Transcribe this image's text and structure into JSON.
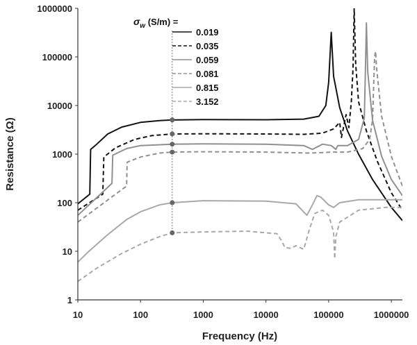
{
  "chart_data": {
    "type": "line",
    "xlabel": "Frequency (Hz)",
    "ylabel": "Resistance (Ω)",
    "x_scale": "log",
    "y_scale": "log",
    "xlim": [
      10,
      1500000
    ],
    "ylim": [
      1,
      1000000
    ],
    "x_ticks": [
      "10",
      "100",
      "1000",
      "10000",
      "100000",
      "1000000"
    ],
    "y_ticks": [
      "1",
      "10",
      "100",
      "1000",
      "10000",
      "100000",
      "1000000"
    ],
    "grid": false,
    "legend": {
      "title_symbol": "σ",
      "title_subscript": "w",
      "title_rest": " (S/m) =",
      "placement": "top-center",
      "entries": [
        "0.019",
        "0.035",
        "0.059",
        "0.081",
        "0.815",
        "3.152"
      ]
    },
    "marker_frequency": 320,
    "series": [
      {
        "name": "0.019",
        "color": "#111111",
        "dash": "solid",
        "points": [
          [
            10,
            95
          ],
          [
            15.5,
            150
          ],
          [
            16,
            1250
          ],
          [
            20,
            1600
          ],
          [
            30,
            2600
          ],
          [
            50,
            3600
          ],
          [
            100,
            4500
          ],
          [
            200,
            4900
          ],
          [
            320,
            5050
          ],
          [
            1000,
            5150
          ],
          [
            10000,
            5100
          ],
          [
            40000,
            5250
          ],
          [
            70000,
            6000
          ],
          [
            90000,
            10000
          ],
          [
            100000,
            30000
          ],
          [
            110000,
            320000
          ],
          [
            120000,
            40000
          ],
          [
            150000,
            9000
          ],
          [
            200000,
            3000
          ],
          [
            300000,
            1000
          ],
          [
            500000,
            300
          ],
          [
            1000000,
            80
          ],
          [
            1500000,
            43
          ]
        ]
      },
      {
        "name": "0.035",
        "color": "#111111",
        "dash": "dashed",
        "points": [
          [
            10,
            70
          ],
          [
            25,
            150
          ],
          [
            26,
            870
          ],
          [
            40,
            1350
          ],
          [
            80,
            2000
          ],
          [
            150,
            2400
          ],
          [
            320,
            2600
          ],
          [
            1000,
            2620
          ],
          [
            10000,
            2600
          ],
          [
            40000,
            2550
          ],
          [
            80000,
            2700
          ],
          [
            120000,
            3300
          ],
          [
            150000,
            4500
          ],
          [
            160000,
            2200
          ],
          [
            190000,
            6500
          ],
          [
            210000,
            3500
          ],
          [
            230000,
            12000
          ],
          [
            245000,
            60000
          ],
          [
            255000,
            1000000
          ],
          [
            270000,
            70000
          ],
          [
            300000,
            12000
          ],
          [
            400000,
            3000
          ],
          [
            600000,
            700
          ],
          [
            1000000,
            160
          ],
          [
            1500000,
            70
          ]
        ]
      },
      {
        "name": "0.059",
        "color": "#909090",
        "dash": "solid",
        "points": [
          [
            10,
            55
          ],
          [
            35,
            250
          ],
          [
            36,
            950
          ],
          [
            60,
            1300
          ],
          [
            100,
            1500
          ],
          [
            320,
            1600
          ],
          [
            1000,
            1620
          ],
          [
            10000,
            1600
          ],
          [
            40000,
            1500
          ],
          [
            55000,
            1250
          ],
          [
            80000,
            1600
          ],
          [
            110000,
            1500
          ],
          [
            130000,
            1250
          ],
          [
            140000,
            1500
          ],
          [
            200000,
            1500
          ],
          [
            300000,
            2000
          ],
          [
            370000,
            5500
          ],
          [
            390000,
            100000
          ],
          [
            400000,
            500000
          ],
          [
            420000,
            50000
          ],
          [
            500000,
            5000
          ],
          [
            700000,
            900
          ],
          [
            1000000,
            300
          ],
          [
            1500000,
            140
          ]
        ]
      },
      {
        "name": "0.081",
        "color": "#909090",
        "dash": "dashed",
        "points": [
          [
            10,
            40
          ],
          [
            60,
            220
          ],
          [
            61,
            680
          ],
          [
            100,
            870
          ],
          [
            200,
            1050
          ],
          [
            320,
            1100
          ],
          [
            1000,
            1120
          ],
          [
            10000,
            1100
          ],
          [
            50000,
            1050
          ],
          [
            120000,
            1100
          ],
          [
            200000,
            1100
          ],
          [
            350000,
            1300
          ],
          [
            450000,
            2000
          ],
          [
            500000,
            5000
          ],
          [
            540000,
            100000
          ],
          [
            560000,
            130000
          ],
          [
            580000,
            60000
          ],
          [
            700000,
            6000
          ],
          [
            1000000,
            900
          ],
          [
            1500000,
            220
          ]
        ]
      },
      {
        "name": "0.815",
        "color": "#a8a8a8",
        "dash": "solid",
        "points": [
          [
            10,
            6
          ],
          [
            15,
            10
          ],
          [
            30,
            22
          ],
          [
            60,
            45
          ],
          [
            100,
            65
          ],
          [
            200,
            90
          ],
          [
            320,
            100
          ],
          [
            1000,
            110
          ],
          [
            10000,
            108
          ],
          [
            30000,
            95
          ],
          [
            45000,
            55
          ],
          [
            55000,
            90
          ],
          [
            65000,
            140
          ],
          [
            75000,
            130
          ],
          [
            100000,
            90
          ],
          [
            120000,
            80
          ],
          [
            150000,
            100
          ],
          [
            300000,
            115
          ],
          [
            1000000,
            115
          ],
          [
            1500000,
            115
          ]
        ]
      },
      {
        "name": "3.152",
        "color": "#a8a8a8",
        "dash": "dashed",
        "points": [
          [
            10,
            2.4
          ],
          [
            20,
            4.5
          ],
          [
            50,
            9
          ],
          [
            100,
            14
          ],
          [
            200,
            20
          ],
          [
            320,
            24
          ],
          [
            1000,
            25
          ],
          [
            5000,
            26
          ],
          [
            15000,
            23
          ],
          [
            18000,
            16
          ],
          [
            20000,
            12
          ],
          [
            25000,
            11.5
          ],
          [
            30000,
            13
          ],
          [
            40000,
            11
          ],
          [
            50000,
            30
          ],
          [
            60000,
            60
          ],
          [
            80000,
            70
          ],
          [
            100000,
            55
          ],
          [
            120000,
            25
          ],
          [
            125000,
            7
          ],
          [
            130000,
            20
          ],
          [
            150000,
            40
          ],
          [
            300000,
            70
          ],
          [
            800000,
            80
          ],
          [
            1500000,
            80
          ]
        ]
      }
    ]
  }
}
